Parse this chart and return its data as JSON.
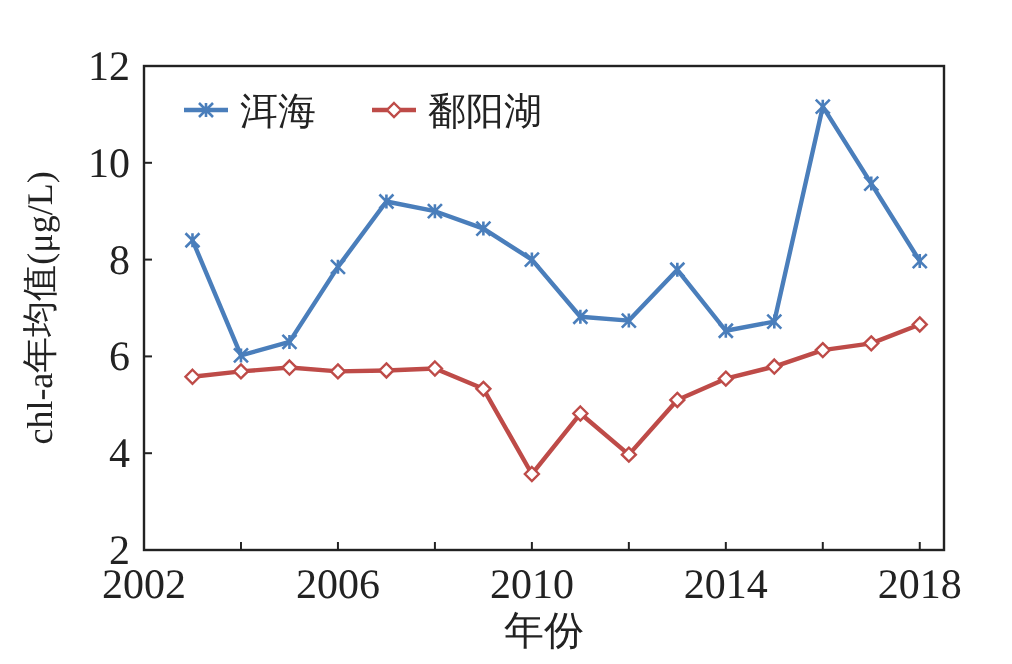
{
  "chart_data": {
    "type": "line",
    "xlabel": "年份",
    "ylabel": "chl-a年均值(μg/L)",
    "x": [
      2003,
      2004,
      2005,
      2006,
      2007,
      2008,
      2009,
      2010,
      2011,
      2012,
      2013,
      2014,
      2015,
      2016,
      2017,
      2018
    ],
    "xlim": [
      2002,
      2018.5
    ],
    "xticks": [
      2002,
      {
        "value": 2004,
        "label": null
      },
      2006,
      {
        "value": 2008,
        "label": null
      },
      2010,
      {
        "value": 2012,
        "label": null
      },
      2014,
      {
        "value": 2016,
        "label": null
      },
      2018
    ],
    "ylim": [
      2,
      12
    ],
    "yticks": [
      2,
      4,
      6,
      8,
      10,
      12
    ],
    "legend": "top left",
    "grid": false,
    "series": [
      {
        "name": "洱海",
        "color": "#4a7ebb",
        "marker": "cross",
        "values": [
          8.4,
          6.02,
          6.3,
          7.85,
          9.2,
          9.0,
          8.64,
          8.0,
          6.82,
          6.74,
          7.79,
          6.53,
          6.72,
          11.16,
          9.57,
          7.97
        ]
      },
      {
        "name": "鄱阳湖",
        "color": "#be4b48",
        "marker": "diamond",
        "values": [
          5.58,
          5.69,
          5.77,
          5.69,
          5.71,
          5.75,
          5.33,
          3.57,
          4.82,
          3.97,
          5.1,
          5.54,
          5.79,
          6.13,
          6.27,
          6.66
        ]
      }
    ]
  }
}
